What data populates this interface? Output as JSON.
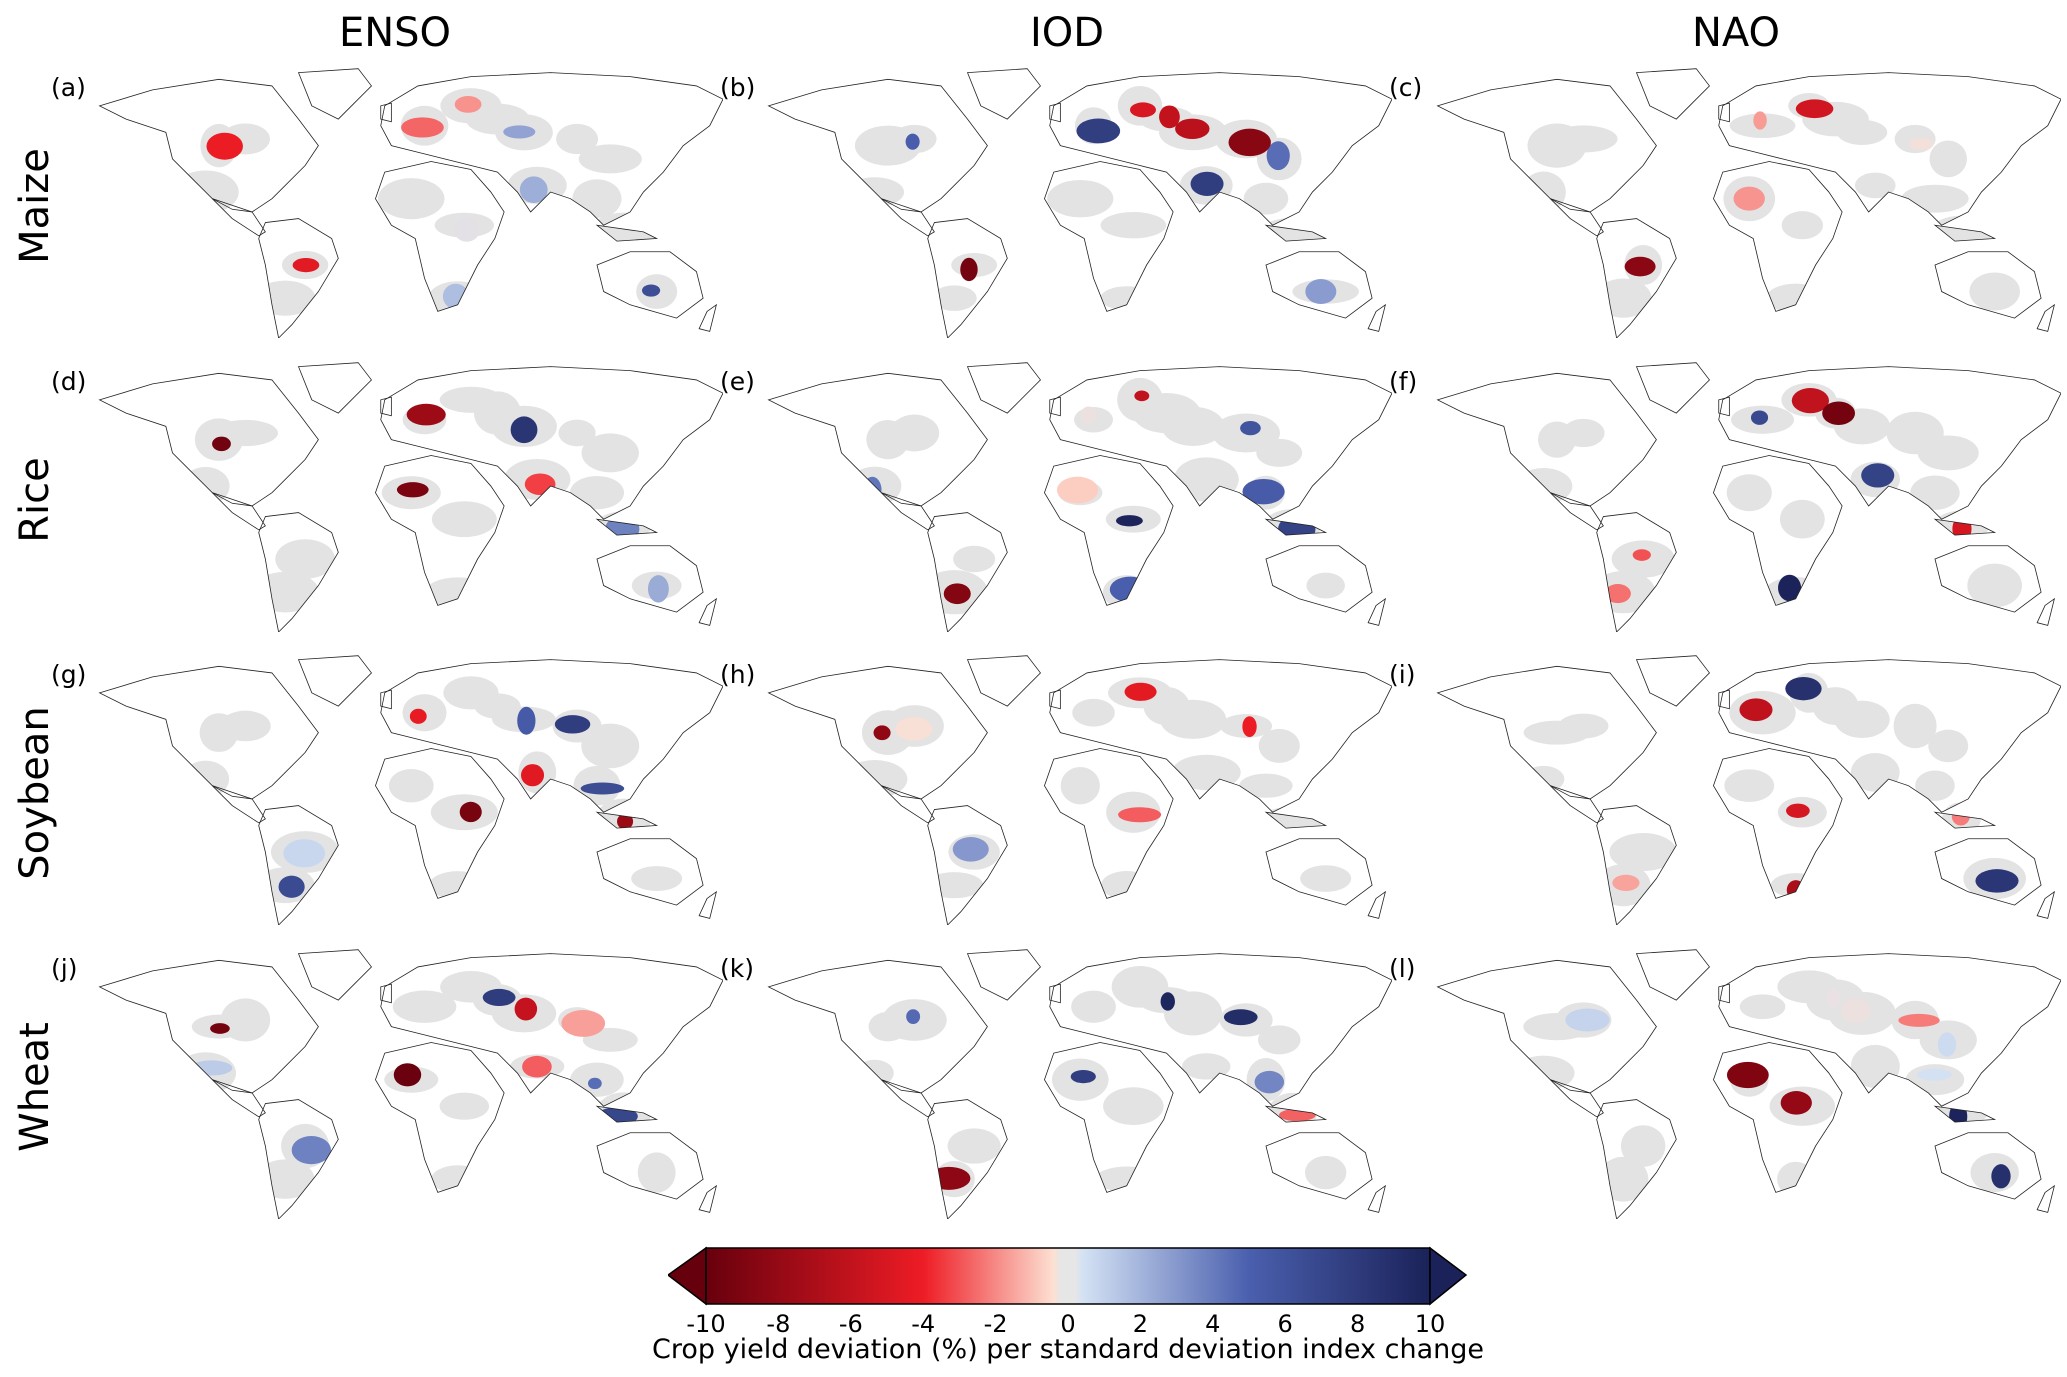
{
  "columns": [
    "ENSO",
    "IOD",
    "NAO"
  ],
  "rows": [
    "Maize",
    "Rice",
    "Soybean",
    "Wheat"
  ],
  "panel_labels": [
    "(a)",
    "(b)",
    "(c)",
    "(d)",
    "(e)",
    "(f)",
    "(g)",
    "(h)",
    "(i)",
    "(j)",
    "(k)",
    "(l)"
  ],
  "colorbar": {
    "ticks": [
      "-10",
      "-8",
      "-6",
      "-4",
      "-2",
      "0",
      "2",
      "4",
      "6",
      "8",
      "10"
    ],
    "range": [
      -10,
      10
    ],
    "label": "Crop yield deviation (%) per standard deviation index change",
    "colors": {
      "neg_dark": "#67000d",
      "neg": "#ee1c25",
      "neg_light": "#fde0d2",
      "zero": "#e6e6e6",
      "pos_light": "#d4e2f4",
      "pos": "#2d3e96",
      "pos_dark": "#1b2259"
    }
  }
}
